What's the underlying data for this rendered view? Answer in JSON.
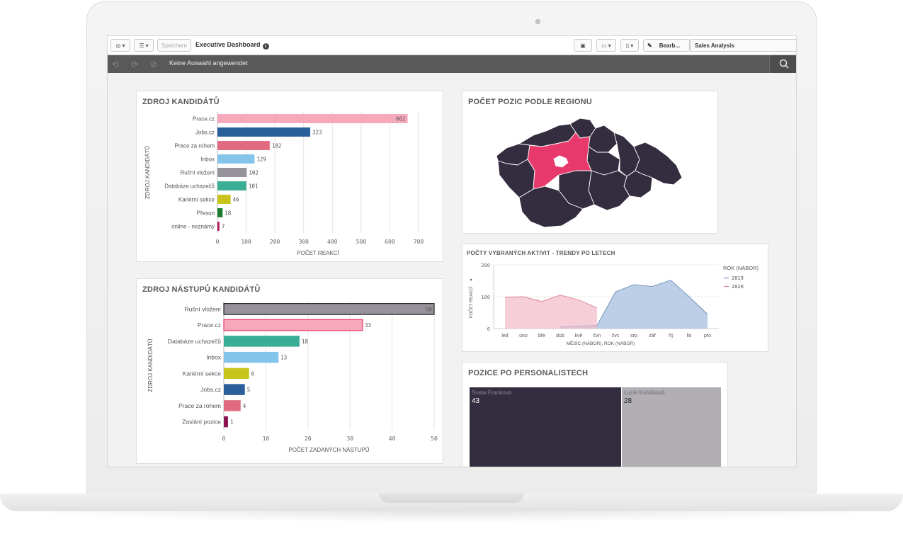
{
  "toolbar": {
    "save_label": "Speichern",
    "title": "Executive Dashboard",
    "edit_label": "Bearb...",
    "app_label": "Sales Analysis"
  },
  "selections": {
    "text": "Keine Auswahl angewendet"
  },
  "colors": {
    "pink": "#e8396c",
    "dark": "#342d3f",
    "grey": "#a9a6ad"
  },
  "charts": {
    "source": {
      "title": "ZDROJ KANDIDÁTŮ",
      "ylabel": "ZDROJ KANDIDÁTŮ",
      "xlabel": "POČET REAKCÍ",
      "chart_data": {
        "type": "bar",
        "orientation": "horizontal",
        "categories": [
          "Prace.cz",
          "Jobs.cz",
          "Prace za rohem",
          "Inbox",
          "Ruční vložení",
          "Databáze uchazečů",
          "Kariérní sekce",
          "Přesun",
          "online - neznámý"
        ],
        "values": [
          662,
          323,
          182,
          129,
          102,
          101,
          46,
          18,
          7
        ],
        "colors": [
          "#f7a9bc",
          "#2b5f99",
          "#e06b81",
          "#84c4ea",
          "#96929a",
          "#3aae95",
          "#c8c41c",
          "#1e7b2e",
          "#b4195b"
        ],
        "xticks": [
          0,
          100,
          200,
          300,
          400,
          500,
          600,
          700
        ],
        "xlim": [
          0,
          700
        ]
      }
    },
    "hires": {
      "title": "ZDROJ NÁSTUPŮ KANDIDÁTŮ",
      "ylabel": "ZDROJ KANDIDÁTŮ",
      "xlabel": "POČET ZADANÝCH NÁSTUPŮ",
      "chart_data": {
        "type": "bar",
        "orientation": "horizontal",
        "categories": [
          "Ruční vložení",
          "Prace.cz",
          "Databáze uchazečů",
          "Inbox",
          "Kariérní sekce",
          "Jobs.cz",
          "Prace za rohem",
          "Zaslání pozice"
        ],
        "values": [
          50,
          33,
          18,
          13,
          6,
          5,
          4,
          1
        ],
        "colors": [
          "#96929a",
          "#f7a9bc",
          "#3aae95",
          "#84c4ea",
          "#c8c41c",
          "#2b5f99",
          "#e06b81",
          "#8a1550"
        ],
        "xticks": [
          0,
          10,
          20,
          30,
          40,
          50
        ],
        "xlim": [
          0,
          50
        ]
      }
    },
    "region": {
      "title": "POČET POZIC PODLE REGIONU"
    },
    "trend": {
      "title": "POČTY VYBRANÝCH AKTIVIT - TRENDY PO LETECH",
      "ylabel": "POČET REAKCÍ",
      "xlabel": "MĚSÍC (NÁBOR), ROK (NÁBOR)",
      "legend_title": "ROK (NÁBOR)",
      "chart_data": {
        "type": "area",
        "categories": [
          "led",
          "úno",
          "bře",
          "dub",
          "kvě",
          "čvn",
          "čvc",
          "srp",
          "zář",
          "říj",
          "lis",
          "pro"
        ],
        "ylim": [
          0,
          200
        ],
        "yticks": [
          0,
          100,
          200
        ],
        "series": [
          {
            "name": "2019",
            "color": "#9fbadb",
            "values": [
              null,
              null,
              null,
              5,
              8,
              10,
              115,
              138,
              132,
              152,
              100,
              45
            ]
          },
          {
            "name": "2020",
            "color": "#f1b9c6",
            "values": [
              98,
              100,
              85,
              105,
              90,
              65,
              null,
              null,
              null,
              null,
              null,
              null
            ]
          }
        ]
      }
    },
    "treemap": {
      "title": "POZICE PO PERSONALISTECH",
      "chart_data": {
        "type": "treemap",
        "items": [
          {
            "name": "Sveta Franková",
            "value": 43,
            "color": "#342d3f"
          },
          {
            "name": "Lucie Kořátková",
            "value": 28,
            "color": "#b1aeb4"
          }
        ]
      }
    }
  }
}
